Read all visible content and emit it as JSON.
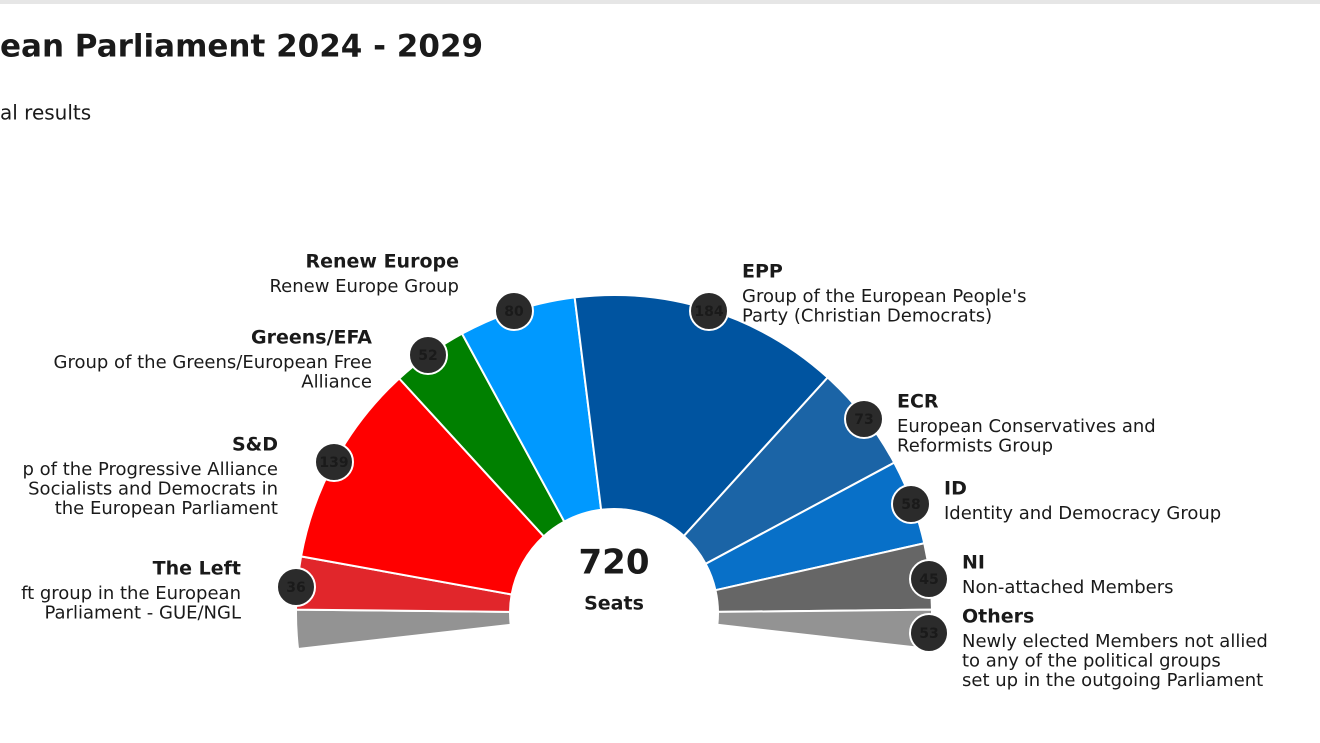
{
  "chart_data": {
    "type": "parliament",
    "title": "ean Parliament 2024 - 2029",
    "subtitle": "al results",
    "total": 720,
    "total_label": "Seats",
    "groups": [
      {
        "name": "The Left",
        "description": [
          "ft group in the European",
          "Parliament - GUE/NGL"
        ],
        "value": 36,
        "color": "#e1262b"
      },
      {
        "name": "S&D",
        "description": [
          "p of the Progressive Alliance",
          "Socialists and Democrats in",
          "the European Parliament"
        ],
        "value": 139,
        "color": "#ff0000"
      },
      {
        "name": "Greens/EFA",
        "description": [
          "Group of the Greens/European Free",
          "Alliance"
        ],
        "value": 52,
        "color": "#008000"
      },
      {
        "name": "Renew Europe",
        "description": [
          "Renew Europe Group"
        ],
        "value": 80,
        "color": "#0099ff"
      },
      {
        "name": "EPP",
        "description": [
          "Group of the European People's",
          "Party (Christian Democrats)"
        ],
        "value": 184,
        "color": "#0054a0"
      },
      {
        "name": "ECR",
        "description": [
          "European Conservatives and",
          "Reformists Group"
        ],
        "value": 73,
        "color": "#1b64a6"
      },
      {
        "name": "ID",
        "description": [
          "Identity and Democracy Group"
        ],
        "value": 58,
        "color": "#0870c8"
      },
      {
        "name": "NI",
        "description": [
          "Non-attached Members"
        ],
        "value": 45,
        "color": "#666666"
      },
      {
        "name": "Others",
        "description": [
          "Newly elected Members not allied",
          "to any of the political groups",
          "set up in the outgoing Parliament"
        ],
        "value": 53,
        "color": "#939393"
      }
    ]
  }
}
